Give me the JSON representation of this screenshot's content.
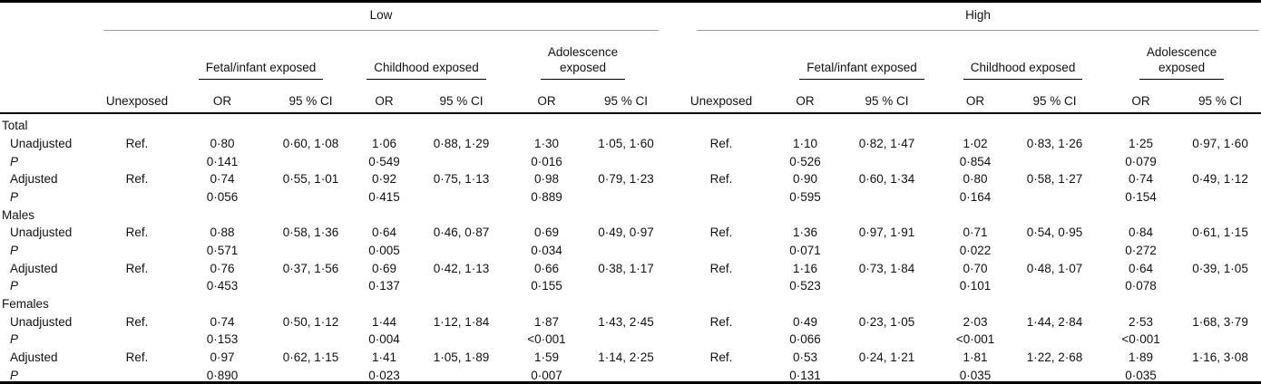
{
  "table": {
    "groups": [
      {
        "label": "Low",
        "subgroups": [
          "Fetal/infant exposed",
          "Childhood exposed",
          "Adolescence\nexposed"
        ]
      },
      {
        "label": "High",
        "subgroups": [
          "Fetal/infant exposed",
          "Childhood exposed",
          "Adolescence\nexposed"
        ]
      }
    ],
    "headers": {
      "unexposed": "Unexposed",
      "or": "OR",
      "ci": "95 % CI"
    },
    "sections": [
      {
        "label": "Total",
        "rows": [
          {
            "type": "estimate",
            "label": "Unadjusted",
            "low": {
              "unexposed": "Ref.",
              "pairs": [
                {
                  "or": "0·80",
                  "ci": "0·60, 1·08"
                },
                {
                  "or": "1·06",
                  "ci": "0·88, 1·29"
                },
                {
                  "or": "1·30",
                  "ci": "1·05, 1·60"
                }
              ]
            },
            "high": {
              "unexposed": "Ref.",
              "pairs": [
                {
                  "or": "1·10",
                  "ci": "0·82, 1·47"
                },
                {
                  "or": "1·02",
                  "ci": "0·83, 1·26"
                },
                {
                  "or": "1·25",
                  "ci": "0·97, 1·60"
                }
              ]
            }
          },
          {
            "type": "pvalue",
            "label": "P",
            "low": [
              "0·141",
              "0·549",
              "0·016"
            ],
            "high": [
              "0·526",
              "0·854",
              "0·079"
            ]
          },
          {
            "type": "estimate",
            "label": "Adjusted",
            "low": {
              "unexposed": "Ref.",
              "pairs": [
                {
                  "or": "0·74",
                  "ci": "0·55, 1·01"
                },
                {
                  "or": "0·92",
                  "ci": "0·75, 1·13"
                },
                {
                  "or": "0·98",
                  "ci": "0·79, 1·23"
                }
              ]
            },
            "high": {
              "unexposed": "Ref.",
              "pairs": [
                {
                  "or": "0·90",
                  "ci": "0·60, 1·34"
                },
                {
                  "or": "0·80",
                  "ci": "0·58, 1·27"
                },
                {
                  "or": "0·74",
                  "ci": "0·49, 1·12"
                }
              ]
            }
          },
          {
            "type": "pvalue",
            "label": "P",
            "low": [
              "0·056",
              "0·415",
              "0·889"
            ],
            "high": [
              "0·595",
              "0·164",
              "0·154"
            ]
          }
        ]
      },
      {
        "label": "Males",
        "rows": [
          {
            "type": "estimate",
            "label": "Unadjusted",
            "low": {
              "unexposed": "Ref.",
              "pairs": [
                {
                  "or": "0·88",
                  "ci": "0·58, 1·36"
                },
                {
                  "or": "0·64",
                  "ci": "0·46, 0·87"
                },
                {
                  "or": "0·69",
                  "ci": "0·49, 0·97"
                }
              ]
            },
            "high": {
              "unexposed": "Ref.",
              "pairs": [
                {
                  "or": "1·36",
                  "ci": "0·97, 1·91"
                },
                {
                  "or": "0·71",
                  "ci": "0·54, 0·95"
                },
                {
                  "or": "0·84",
                  "ci": "0·61, 1·15"
                }
              ]
            }
          },
          {
            "type": "pvalue",
            "label": "P",
            "low": [
              "0·571",
              "0·005",
              "0·034"
            ],
            "high": [
              "0·071",
              "0·022",
              "0·272"
            ]
          },
          {
            "type": "estimate",
            "label": "Adjusted",
            "low": {
              "unexposed": "Ref.",
              "pairs": [
                {
                  "or": "0·76",
                  "ci": "0·37, 1·56"
                },
                {
                  "or": "0·69",
                  "ci": "0·42, 1·13"
                },
                {
                  "or": "0·66",
                  "ci": "0·38, 1·17"
                }
              ]
            },
            "high": {
              "unexposed": "Ref.",
              "pairs": [
                {
                  "or": "1·16",
                  "ci": "0·73, 1·84"
                },
                {
                  "or": "0·70",
                  "ci": "0·48, 1·07"
                },
                {
                  "or": "0·64",
                  "ci": "0·39, 1·05"
                }
              ]
            }
          },
          {
            "type": "pvalue",
            "label": "P",
            "low": [
              "0·453",
              "0·137",
              "0·155"
            ],
            "high": [
              "0·523",
              "0·101",
              "0·078"
            ]
          }
        ]
      },
      {
        "label": "Females",
        "rows": [
          {
            "type": "estimate",
            "label": "Unadjusted",
            "low": {
              "unexposed": "Ref.",
              "pairs": [
                {
                  "or": "0·74",
                  "ci": "0·50, 1·12"
                },
                {
                  "or": "1·44",
                  "ci": "1·12, 1·84"
                },
                {
                  "or": "1·87",
                  "ci": "1·43, 2·45"
                }
              ]
            },
            "high": {
              "unexposed": "Ref.",
              "pairs": [
                {
                  "or": "0·49",
                  "ci": "0·23, 1·05"
                },
                {
                  "or": "2·03",
                  "ci": "1·44, 2·84"
                },
                {
                  "or": "2·53",
                  "ci": "1·68, 3·79"
                }
              ]
            }
          },
          {
            "type": "pvalue",
            "label": "P",
            "low": [
              "0·153",
              "0·004",
              "<0·001"
            ],
            "high": [
              "0·066",
              "<0·001",
              "<0·001"
            ]
          },
          {
            "type": "estimate",
            "label": "Adjusted",
            "low": {
              "unexposed": "Ref.",
              "pairs": [
                {
                  "or": "0·97",
                  "ci": "0·62, 1·15"
                },
                {
                  "or": "1·41",
                  "ci": "1·05, 1·89"
                },
                {
                  "or": "1·59",
                  "ci": "1·14, 2·25"
                }
              ]
            },
            "high": {
              "unexposed": "Ref.",
              "pairs": [
                {
                  "or": "0·53",
                  "ci": "0·24, 1·21"
                },
                {
                  "or": "1·81",
                  "ci": "1·22, 2·68"
                },
                {
                  "or": "1·89",
                  "ci": "1·16, 3·08"
                }
              ]
            }
          },
          {
            "type": "pvalue",
            "label": "P",
            "low": [
              "0·890",
              "0·023",
              "0·007"
            ],
            "high": [
              "0·131",
              "0·035",
              "0·035"
            ]
          }
        ]
      }
    ]
  }
}
